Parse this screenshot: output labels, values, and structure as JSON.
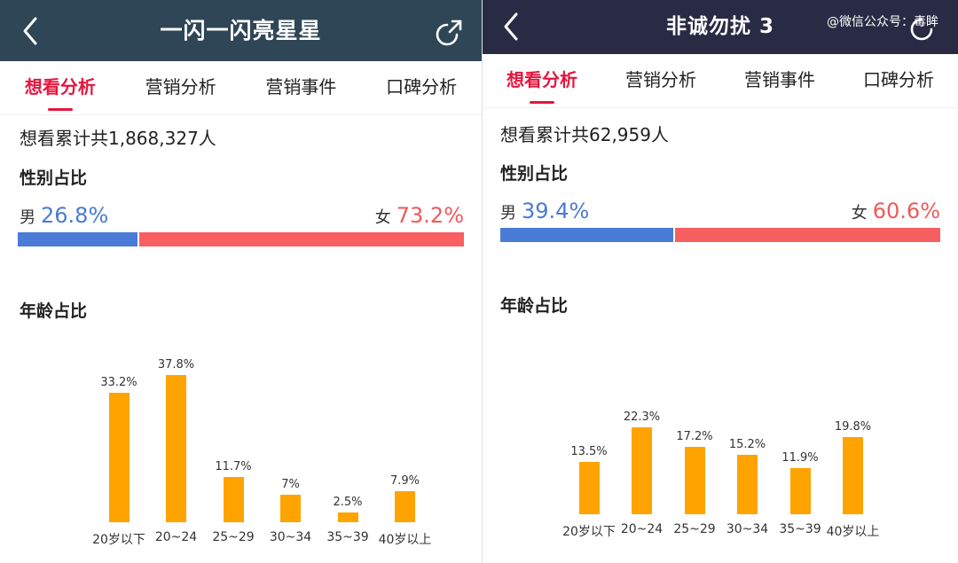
{
  "left": {
    "header": {
      "title": "一闪一闪亮星星",
      "back_icon": "chevron-left-icon",
      "share_icon": "share-icon",
      "bg": "#2f4656"
    },
    "tabs": [
      {
        "label": "想看分析",
        "active": true
      },
      {
        "label": "营销分析"
      },
      {
        "label": "营销事件"
      },
      {
        "label": "口碑分析"
      }
    ],
    "total_prefix": "想看累计共",
    "total_count": "1,868,327",
    "total_suffix": "人",
    "gender": {
      "title": "性别占比",
      "male_label": "男",
      "male_value": "26.8%",
      "female_label": "女",
      "female_value": "73.2%",
      "male_fraction": 0.268
    },
    "age_title": "年龄占比",
    "chart_data": {
      "type": "bar",
      "categories": [
        "20岁以下",
        "20~24",
        "25~29",
        "30~34",
        "35~39",
        "40岁以上"
      ],
      "values": [
        33.2,
        37.8,
        11.7,
        7,
        2.5,
        7.9
      ],
      "value_labels": [
        "33.2%",
        "37.8%",
        "11.7%",
        "7%",
        "2.5%",
        "7.9%"
      ],
      "bar_color": "#ffa300"
    }
  },
  "right": {
    "header": {
      "title": "非诚勿扰 3",
      "back_icon": "chevron-left-icon",
      "share_icon": "share-icon",
      "watermark": "@微信公众号：毒眸",
      "bg": "#282b43"
    },
    "tabs": [
      {
        "label": "想看分析",
        "active": true
      },
      {
        "label": "营销分析"
      },
      {
        "label": "营销事件"
      },
      {
        "label": "口碑分析"
      }
    ],
    "total_prefix": "想看累计共",
    "total_count": "62,959",
    "total_suffix": "人",
    "gender": {
      "title": "性别占比",
      "male_label": "男",
      "male_value": "39.4%",
      "female_label": "女",
      "female_value": "60.6%",
      "male_fraction": 0.394
    },
    "age_title": "年龄占比",
    "chart_data": {
      "type": "bar",
      "categories": [
        "20岁以下",
        "20~24",
        "25~29",
        "30~34",
        "35~39",
        "40岁以上"
      ],
      "values": [
        13.5,
        22.3,
        17.2,
        15.2,
        11.9,
        19.8
      ],
      "value_labels": [
        "13.5%",
        "22.3%",
        "17.2%",
        "15.2%",
        "11.9%",
        "19.8%"
      ],
      "bar_color": "#ffa300"
    }
  },
  "colors": {
    "accent": "#e4163d",
    "male": "#4a7bd6",
    "female": "#f75f60",
    "bar": "#ffa300"
  }
}
